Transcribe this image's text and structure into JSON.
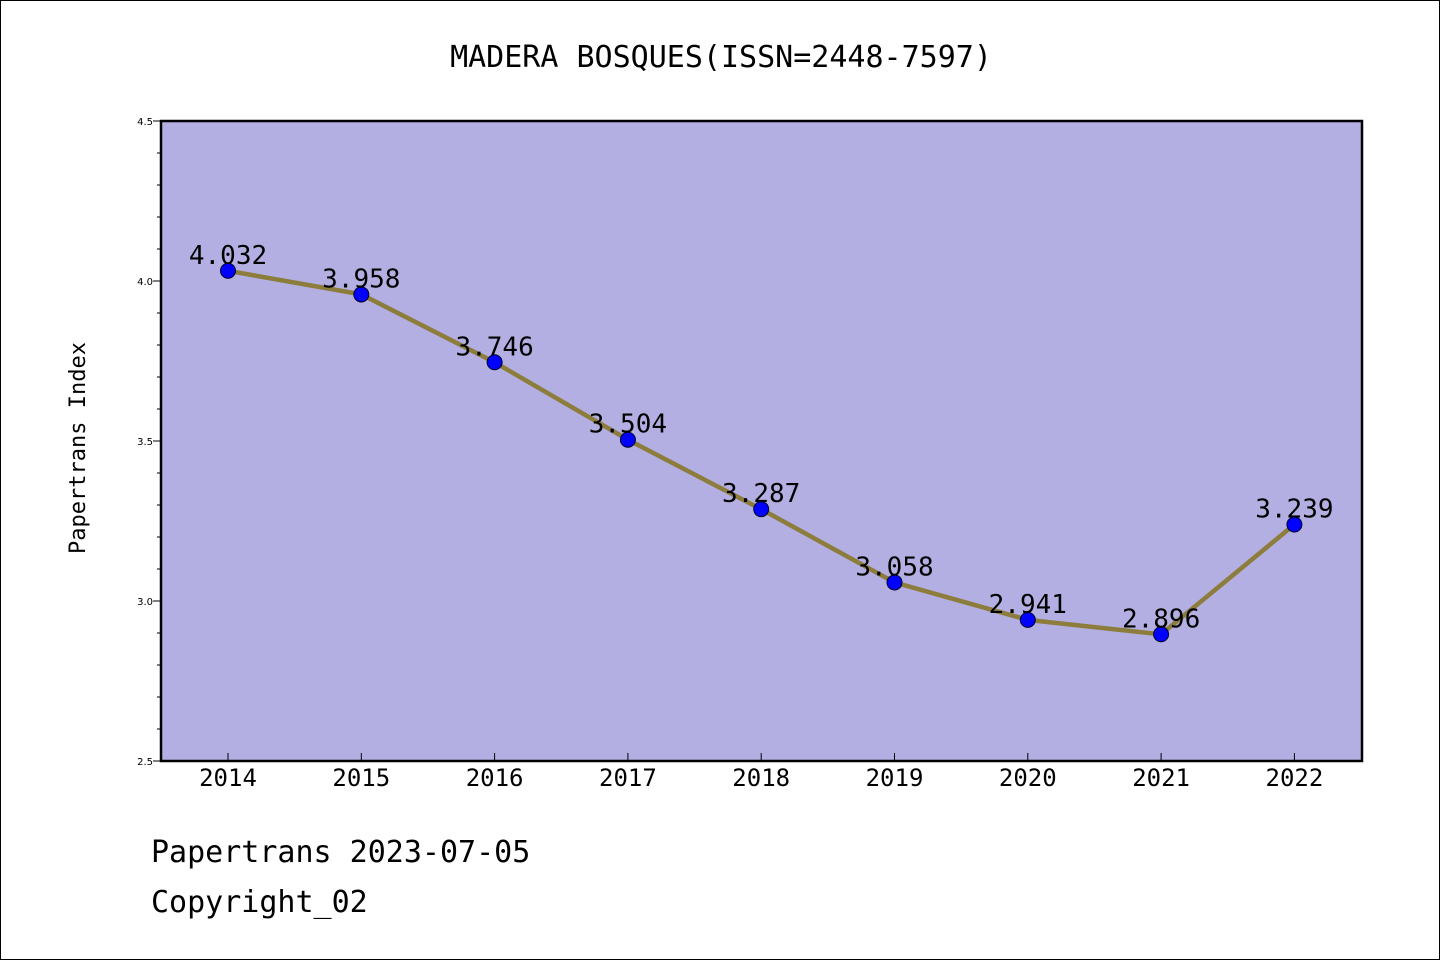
{
  "chart_data": {
    "type": "line",
    "title": "MADERA BOSQUES(ISSN=2448-7597)",
    "xlabel": "",
    "ylabel": "Papertrans Index",
    "categories": [
      "2014",
      "2015",
      "2016",
      "2017",
      "2018",
      "2019",
      "2020",
      "2021",
      "2022"
    ],
    "series": [
      {
        "values": [
          4.032,
          3.958,
          3.746,
          3.504,
          3.287,
          3.058,
          2.941,
          2.896,
          3.239
        ],
        "labels": [
          "4.032",
          "3.958",
          "3.746",
          "3.504",
          "3.287",
          "3.058",
          "2.941",
          "2.896",
          "3.239"
        ]
      }
    ],
    "ylim": [
      2.5,
      4.5
    ],
    "yticks": [
      "2.5",
      "3.0",
      "3.5",
      "4.0",
      "4.5"
    ],
    "grid": false,
    "colors": {
      "plot_background": "#b4afe3",
      "line": "#8c7d3c",
      "marker": "#0000ff"
    }
  },
  "footer": {
    "line1": "Papertrans 2023-07-05",
    "line2": "Copyright_02"
  }
}
